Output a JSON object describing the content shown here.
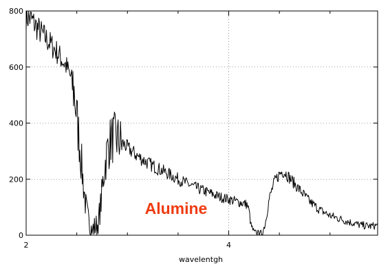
{
  "chart_data": {
    "type": "line",
    "title": "",
    "xlabel": "wavelentgh",
    "ylabel": "",
    "xlim": [
      2,
      5.47
    ],
    "ylim": [
      0,
      800
    ],
    "grid": true,
    "x_ticks": [
      {
        "value": 2,
        "label": "2"
      },
      {
        "value": 4,
        "label": "4"
      }
    ],
    "x_minor_ticks": [
      2.5,
      3,
      3.5,
      4.5,
      5
    ],
    "y_ticks": [
      {
        "value": 0,
        "label": "0"
      },
      {
        "value": 200,
        "label": "200"
      },
      {
        "value": 400,
        "label": "400"
      },
      {
        "value": 600,
        "label": "600"
      },
      {
        "value": 800,
        "label": "800"
      }
    ],
    "series": [
      {
        "color": "#000000",
        "noisy": true,
        "points": [
          [
            2.0,
            780
          ],
          [
            2.05,
            770
          ],
          [
            2.1,
            745
          ],
          [
            2.15,
            722
          ],
          [
            2.2,
            700
          ],
          [
            2.25,
            678
          ],
          [
            2.3,
            655
          ],
          [
            2.35,
            628
          ],
          [
            2.4,
            600
          ],
          [
            2.45,
            555
          ],
          [
            2.48,
            500
          ],
          [
            2.5,
            420
          ],
          [
            2.53,
            320
          ],
          [
            2.56,
            200
          ],
          [
            2.59,
            100
          ],
          [
            2.62,
            40
          ],
          [
            2.65,
            20
          ],
          [
            2.68,
            30
          ],
          [
            2.71,
            40
          ],
          [
            2.74,
            120
          ],
          [
            2.77,
            230
          ],
          [
            2.8,
            300
          ],
          [
            2.83,
            335
          ],
          [
            2.86,
            348
          ],
          [
            2.89,
            345
          ],
          [
            2.95,
            330
          ],
          [
            3.0,
            312
          ],
          [
            3.1,
            282
          ],
          [
            3.2,
            258
          ],
          [
            3.3,
            238
          ],
          [
            3.4,
            220
          ],
          [
            3.5,
            200
          ],
          [
            3.6,
            182
          ],
          [
            3.7,
            166
          ],
          [
            3.8,
            152
          ],
          [
            3.9,
            138
          ],
          [
            4.0,
            128
          ],
          [
            4.1,
            118
          ],
          [
            4.18,
            110
          ],
          [
            4.2,
            88
          ],
          [
            4.22,
            35
          ],
          [
            4.25,
            10
          ],
          [
            4.3,
            5
          ],
          [
            4.33,
            8
          ],
          [
            4.36,
            40
          ],
          [
            4.4,
            130
          ],
          [
            4.45,
            190
          ],
          [
            4.5,
            218
          ],
          [
            4.53,
            228
          ],
          [
            4.56,
            222
          ],
          [
            4.6,
            205
          ],
          [
            4.7,
            162
          ],
          [
            4.8,
            120
          ],
          [
            4.9,
            90
          ],
          [
            5.0,
            70
          ],
          [
            5.1,
            58
          ],
          [
            5.2,
            46
          ],
          [
            5.3,
            36
          ],
          [
            5.4,
            32
          ],
          [
            5.47,
            35
          ]
        ]
      }
    ],
    "annotations": [
      {
        "text": "Alumine",
        "x": 3.48,
        "y": 95,
        "color": "#ef3b10"
      }
    ]
  }
}
